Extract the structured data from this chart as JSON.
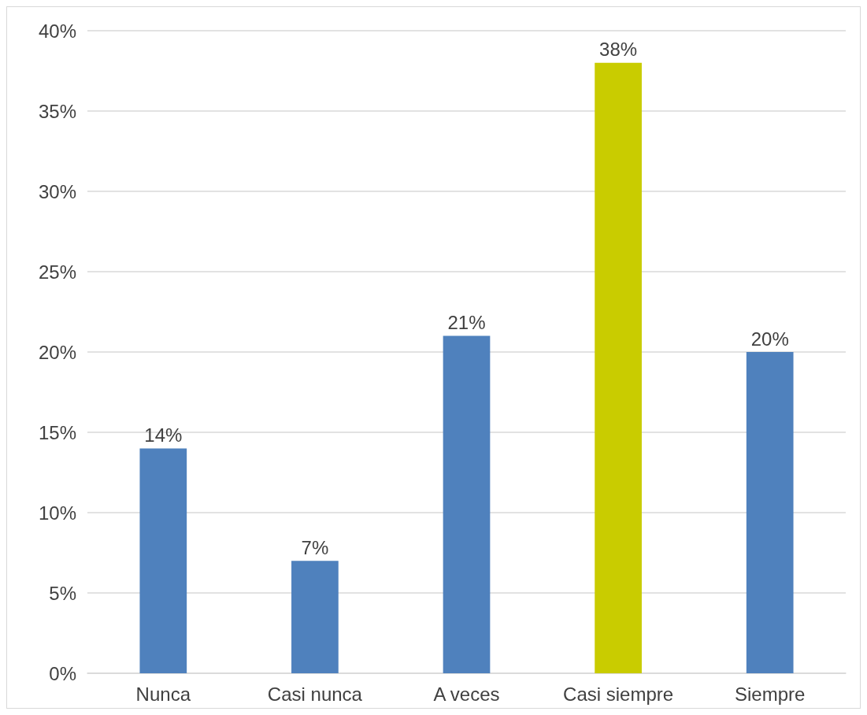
{
  "chart_data": {
    "type": "bar",
    "categories": [
      "Nunca",
      "Casi nunca",
      "A veces",
      "Casi siempre",
      "Siempre"
    ],
    "values": [
      14,
      7,
      21,
      38,
      20
    ],
    "colors": [
      "#4f81bd",
      "#4f81bd",
      "#4f81bd",
      "#c9cc00",
      "#4f81bd"
    ],
    "value_labels": [
      "14%",
      "7%",
      "21%",
      "38%",
      "20%"
    ],
    "ylim": [
      0,
      40
    ],
    "yticks": [
      {
        "value": 0,
        "label": "0%"
      },
      {
        "value": 5,
        "label": "5%"
      },
      {
        "value": 10,
        "label": "10%"
      },
      {
        "value": 15,
        "label": "15%"
      },
      {
        "value": 20,
        "label": "20%"
      },
      {
        "value": 25,
        "label": "25%"
      },
      {
        "value": 30,
        "label": "30%"
      },
      {
        "value": 35,
        "label": "35%"
      },
      {
        "value": 40,
        "label": "40%"
      }
    ],
    "grid": "y"
  }
}
